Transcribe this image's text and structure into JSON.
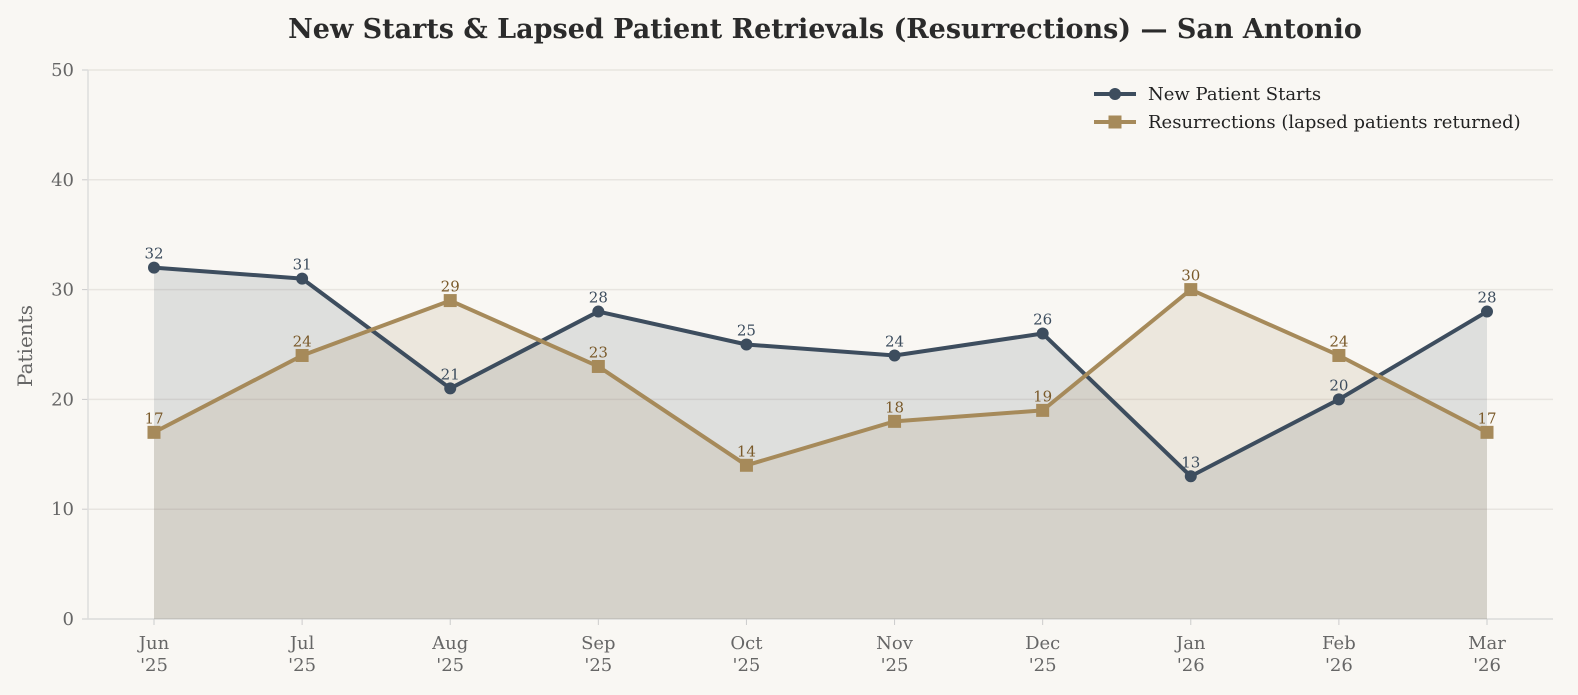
{
  "chart_data": {
    "type": "line",
    "title": "New Starts & Lapsed Patient Retrievals (Resurrections) — San Antonio",
    "y_label": "Patients",
    "categories": [
      "Jun\n'25",
      "Jul\n'25",
      "Aug\n'25",
      "Sep\n'25",
      "Oct\n'25",
      "Nov\n'25",
      "Dec\n'25",
      "Jan\n'26",
      "Feb\n'26",
      "Mar\n'26"
    ],
    "series": [
      {
        "name": "New Patient Starts",
        "color": "#3d4d5e",
        "marker": "circle",
        "values": [
          32,
          31,
          21,
          28,
          25,
          24,
          26,
          13,
          20,
          28
        ]
      },
      {
        "name": "Resurrections (lapsed patients returned)",
        "color": "#a68a5a",
        "marker": "square",
        "values": [
          17,
          24,
          29,
          23,
          14,
          18,
          19,
          30,
          24,
          17
        ]
      }
    ],
    "ylim": [
      0,
      50
    ],
    "yticks": [
      0,
      10,
      20,
      30,
      40,
      50
    ],
    "grid": true,
    "legend": "upper right",
    "area_fill": true
  }
}
